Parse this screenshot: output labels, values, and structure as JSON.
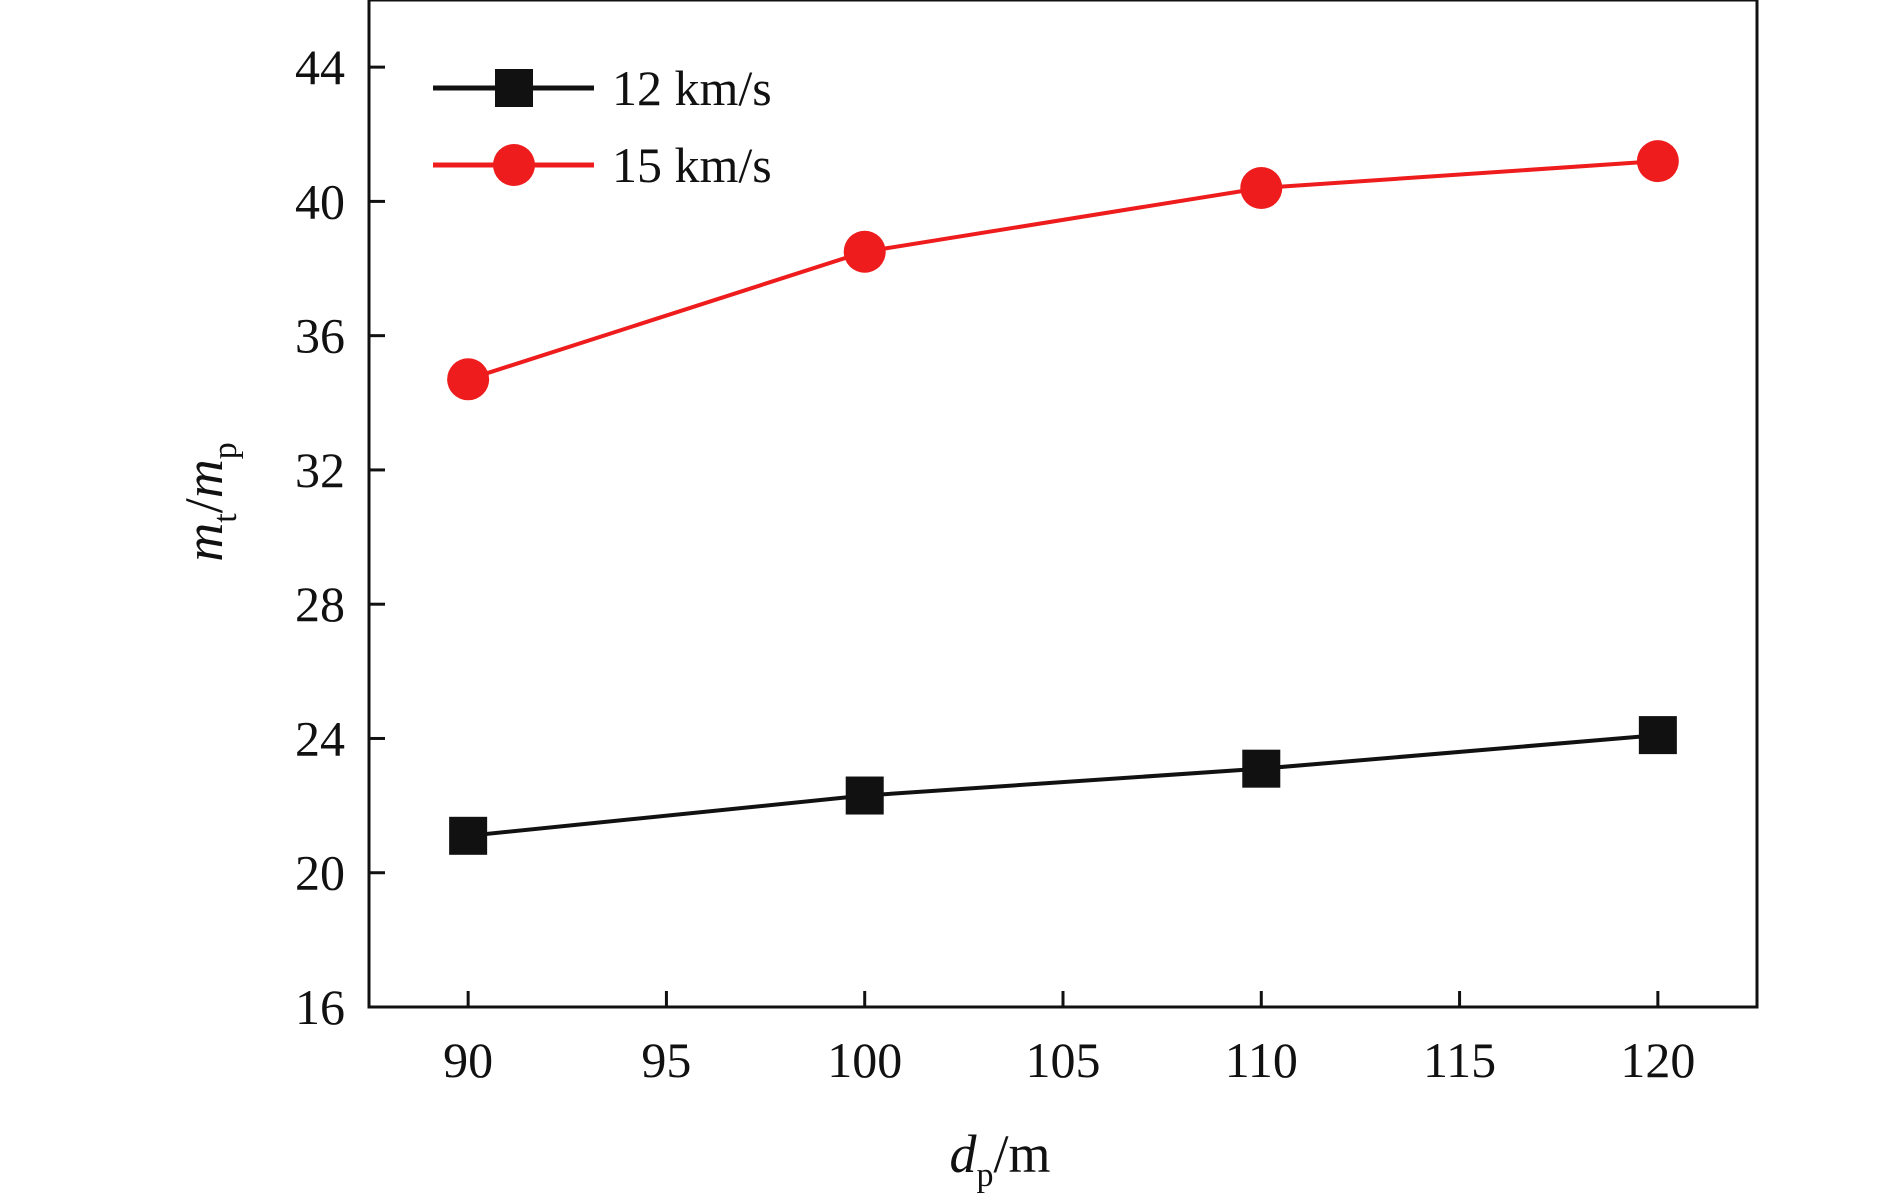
{
  "chart_data": {
    "type": "line",
    "x": [
      90,
      100,
      110,
      120
    ],
    "series": [
      {
        "name": "12 km/s",
        "values": [
          21.1,
          22.3,
          23.1,
          24.1
        ],
        "color": "#111111",
        "marker": "square"
      },
      {
        "name": "15 km/s",
        "values": [
          34.7,
          38.5,
          40.4,
          41.2
        ],
        "color": "#ee1c1c",
        "marker": "circle"
      }
    ],
    "xlim": [
      87.5,
      122.5
    ],
    "ylim": [
      16,
      46
    ],
    "xticks": [
      90,
      95,
      100,
      105,
      110,
      115,
      120
    ],
    "yticks": [
      16,
      20,
      24,
      28,
      32,
      36,
      40,
      44
    ],
    "xlabel": {
      "main": "d",
      "sub": "p",
      "unit": "/m"
    },
    "ylabel": {
      "num": "m",
      "num_sub": "t",
      "sep": "/",
      "den": "m",
      "den_sub": "p"
    },
    "legend_position": "top-left",
    "grid": false
  }
}
